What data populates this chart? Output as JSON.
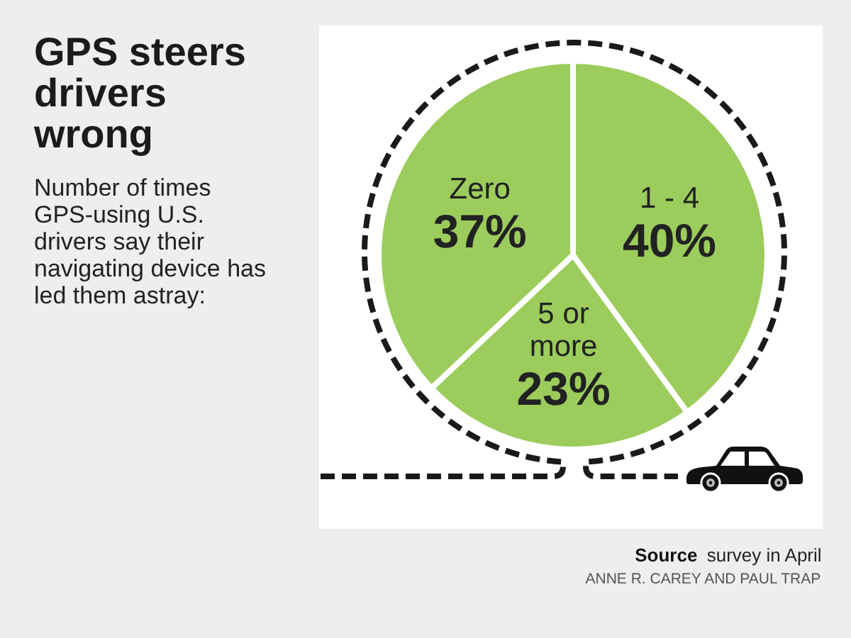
{
  "chart_data": {
    "type": "pie",
    "title": "GPS steers drivers wrong",
    "subtitle": "Number of times GPS-using U.S. drivers say their navigating device has led them astray:",
    "categories": [
      "1 - 4",
      "5 or more",
      "Zero"
    ],
    "values": [
      40,
      23,
      37
    ],
    "value_labels": [
      "40%",
      "23%",
      "37%"
    ],
    "colors": [
      "#9ccc5c",
      "#9ccc5c",
      "#9ccc5c"
    ],
    "annotations": [
      "Source",
      "survey in April",
      "ANNE R. CAREY AND PAUL TRAP"
    ]
  }
}
